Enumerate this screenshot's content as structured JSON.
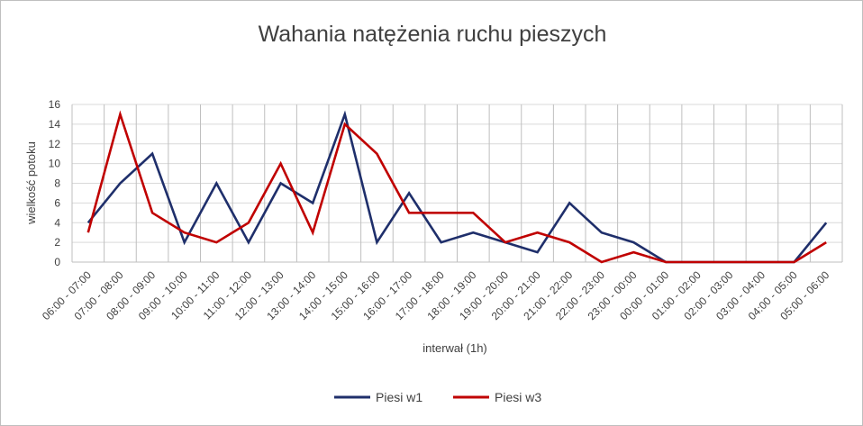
{
  "chart_data": {
    "type": "line",
    "title": "Wahania natężenia ruchu pieszych",
    "xlabel": "interwał (1h)",
    "ylabel": "wielkość potoku",
    "ylim": [
      0,
      16
    ],
    "yticks": [
      0,
      2,
      4,
      6,
      8,
      10,
      12,
      14,
      16
    ],
    "grid": true,
    "legend_position": "bottom",
    "categories": [
      "06:00 - 07:00",
      "07:00 - 08:00",
      "08:00 - 09:00",
      "09:00 - 10:00",
      "10:00 - 11:00",
      "11:00 - 12:00",
      "12:00 - 13:00",
      "13:00 - 14:00",
      "14:00 - 15:00",
      "15:00 - 16:00",
      "16:00 - 17:00",
      "17:00 - 18:00",
      "18:00 - 19:00",
      "19:00 - 20:00",
      "20:00 - 21:00",
      "21:00 - 22:00",
      "22:00 - 23:00",
      "23:00 - 00:00",
      "00:00 - 01:00",
      "01:00 - 02:00",
      "02:00 - 03:00",
      "03:00 - 04:00",
      "04:00 - 05:00",
      "05:00 - 06:00"
    ],
    "series": [
      {
        "name": "Piesi w1",
        "color": "#1f2f6b",
        "values": [
          4,
          8,
          11,
          2,
          8,
          2,
          8,
          6,
          15,
          2,
          7,
          2,
          3,
          2,
          1,
          6,
          3,
          2,
          0,
          0,
          0,
          0,
          0,
          4
        ]
      },
      {
        "name": "Piesi w3",
        "color": "#c00000",
        "values": [
          3,
          15,
          5,
          3,
          2,
          4,
          10,
          3,
          14,
          11,
          5,
          5,
          5,
          2,
          3,
          2,
          0,
          1,
          0,
          0,
          0,
          0,
          0,
          2
        ]
      }
    ]
  }
}
